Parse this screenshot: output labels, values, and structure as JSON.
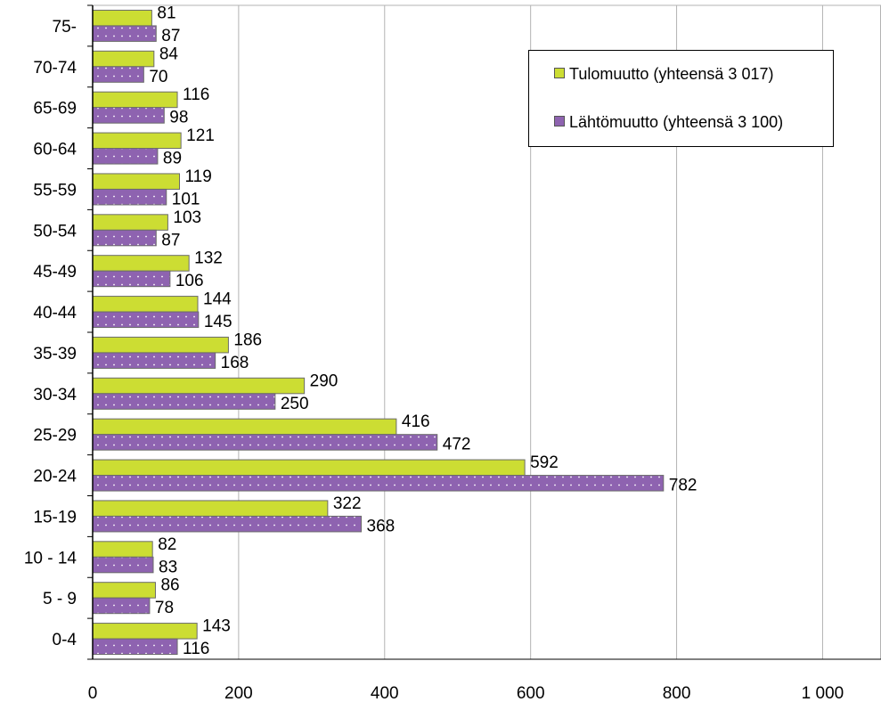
{
  "chart_data": {
    "type": "bar",
    "orientation": "horizontal",
    "categories": [
      "0-4",
      "5 - 9",
      "10 - 14",
      "15-19",
      "20-24",
      "25-29",
      "30-34",
      "35-39",
      "40-44",
      "45-49",
      "50-54",
      "55-59",
      "60-64",
      "65-69",
      "70-74",
      "75-"
    ],
    "series": [
      {
        "name": "Tulomuutto (yhteensä 3 017)",
        "color": "#ccdd33",
        "values": [
          143,
          86,
          82,
          322,
          592,
          416,
          290,
          186,
          144,
          132,
          103,
          119,
          121,
          116,
          84,
          81
        ]
      },
      {
        "name": "Lähtömuutto (yhteensä 3 100)",
        "color": "#8e63b0",
        "values": [
          116,
          78,
          83,
          368,
          782,
          472,
          250,
          168,
          145,
          106,
          87,
          101,
          89,
          98,
          70,
          87
        ]
      }
    ],
    "xlim": [
      0,
      1080
    ],
    "xticks": [
      0,
      200,
      400,
      600,
      800,
      1000
    ],
    "xtick_labels": [
      "0",
      "200",
      "400",
      "600",
      "800",
      "1 000"
    ],
    "grid": "vertical",
    "legend_position": "top-right",
    "data_labels": true
  }
}
